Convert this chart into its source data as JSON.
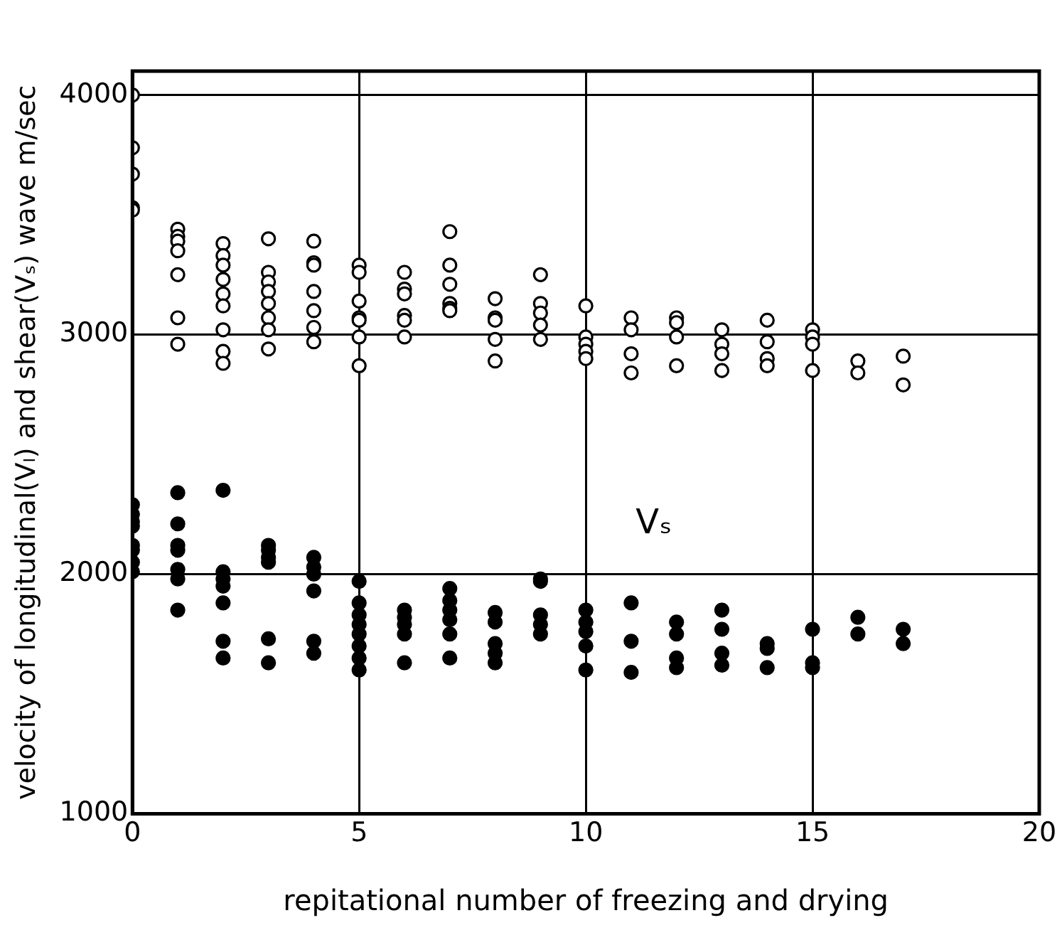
{
  "chart_data": {
    "type": "scatter",
    "xlabel": "repitational number of freezing and drying",
    "ylabel": "velocity of longitudinal(Vₗ) and shear(Vₛ) wave m/sec",
    "xlim": [
      0,
      20
    ],
    "xticks": [
      0,
      5,
      10,
      15,
      20
    ],
    "ylim": [
      1000,
      4100
    ],
    "yticks": [
      1000,
      2000,
      3000,
      4000
    ],
    "grid": true,
    "legend": false,
    "marker": "circle",
    "annotations": [
      "Vₛ"
    ],
    "series": [
      {
        "color": "#ffffff",
        "x": [
          0,
          0,
          0,
          0,
          0,
          1,
          1,
          1,
          1,
          1,
          1,
          1,
          2,
          2,
          2,
          2,
          2,
          2,
          2,
          2,
          2,
          3,
          3,
          3,
          3,
          3,
          3,
          3,
          3,
          4,
          4,
          4,
          4,
          4,
          4,
          4,
          5,
          5,
          5,
          5,
          5,
          5,
          5,
          6,
          6,
          6,
          6,
          6,
          6,
          7,
          7,
          7,
          7,
          7,
          7,
          8,
          8,
          8,
          8,
          8,
          9,
          9,
          9,
          9,
          9,
          10,
          10,
          10,
          10,
          10,
          11,
          11,
          11,
          11,
          12,
          12,
          12,
          12,
          13,
          13,
          13,
          13,
          14,
          14,
          14,
          14,
          15,
          15,
          15,
          15,
          16,
          16,
          17,
          17
        ],
        "values": [
          4000,
          3780,
          3670,
          3530,
          3520,
          3440,
          3410,
          3390,
          3350,
          3250,
          3070,
          2960,
          3380,
          3330,
          3290,
          3230,
          3170,
          3120,
          3020,
          2930,
          2880,
          3400,
          3260,
          3220,
          3180,
          3130,
          3070,
          3020,
          2940,
          3390,
          3300,
          3290,
          3180,
          3100,
          3030,
          2970,
          3290,
          3260,
          3140,
          3070,
          3060,
          2990,
          2870,
          3260,
          3190,
          3170,
          3080,
          3060,
          2990,
          3430,
          3290,
          3210,
          3130,
          3110,
          3100,
          3150,
          3070,
          3060,
          2980,
          2890,
          3250,
          3130,
          3090,
          3040,
          2980,
          3120,
          2990,
          2960,
          2930,
          2900,
          3070,
          3020,
          2920,
          2840,
          3070,
          3050,
          2990,
          2870,
          3020,
          2960,
          2920,
          2850,
          3060,
          2970,
          2900,
          2870,
          3020,
          2990,
          2960,
          2850,
          2890,
          2840,
          2910,
          2790
        ]
      },
      {
        "color": "#000000",
        "x": [
          0,
          0,
          0,
          0,
          0,
          0,
          0,
          0,
          1,
          1,
          1,
          1,
          1,
          1,
          1,
          2,
          2,
          2,
          2,
          2,
          2,
          2,
          3,
          3,
          3,
          3,
          3,
          3,
          4,
          4,
          4,
          4,
          4,
          4,
          5,
          5,
          5,
          5,
          5,
          5,
          5,
          5,
          6,
          6,
          6,
          6,
          6,
          7,
          7,
          7,
          7,
          7,
          7,
          8,
          8,
          8,
          8,
          8,
          9,
          9,
          9,
          9,
          9,
          10,
          10,
          10,
          10,
          10,
          11,
          11,
          11,
          12,
          12,
          12,
          12,
          13,
          13,
          13,
          13,
          14,
          14,
          14,
          15,
          15,
          15,
          16,
          16,
          17,
          17
        ],
        "values": [
          2290,
          2250,
          2220,
          2200,
          2120,
          2100,
          2050,
          2010,
          2340,
          2210,
          2120,
          2100,
          2020,
          1980,
          1850,
          2350,
          2010,
          1980,
          1950,
          1880,
          1720,
          1650,
          2120,
          2100,
          2070,
          2050,
          1730,
          1630,
          2070,
          2030,
          2000,
          1930,
          1720,
          1670,
          1970,
          1880,
          1830,
          1790,
          1750,
          1700,
          1650,
          1600,
          1850,
          1820,
          1790,
          1750,
          1630,
          1940,
          1890,
          1850,
          1810,
          1750,
          1650,
          1840,
          1800,
          1710,
          1670,
          1630,
          1980,
          1970,
          1830,
          1790,
          1750,
          1850,
          1800,
          1760,
          1700,
          1600,
          1880,
          1720,
          1590,
          1800,
          1750,
          1650,
          1610,
          1850,
          1770,
          1670,
          1620,
          1710,
          1690,
          1610,
          1770,
          1630,
          1610,
          1820,
          1750,
          1770,
          1710
        ]
      }
    ]
  }
}
